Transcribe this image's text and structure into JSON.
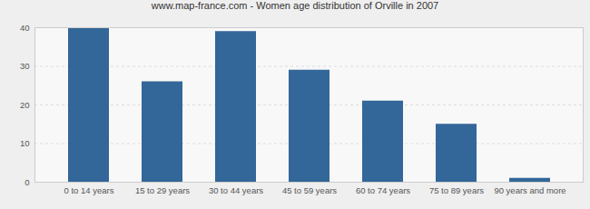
{
  "chart_data": {
    "type": "bar",
    "title": "www.map-france.com - Women age distribution of Orville in 2007",
    "categories": [
      "0 to 14 years",
      "15 to 29 years",
      "30 to 44 years",
      "45 to 59 years",
      "60 to 74 years",
      "75 to 89 years",
      "90 years and more"
    ],
    "values": [
      40,
      26,
      39,
      29,
      21,
      15,
      1
    ],
    "color": "#336699",
    "ylim": [
      0,
      40
    ],
    "yticks": [
      0,
      10,
      20,
      30,
      40
    ],
    "grid": true
  }
}
